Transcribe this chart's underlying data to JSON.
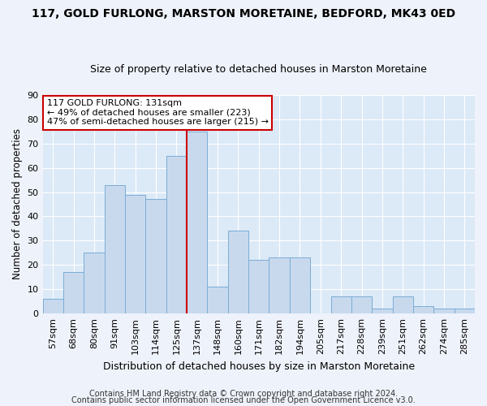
{
  "title1": "117, GOLD FURLONG, MARSTON MORETAINE, BEDFORD, MK43 0ED",
  "title2": "Size of property relative to detached houses in Marston Moretaine",
  "xlabel": "Distribution of detached houses by size in Marston Moretaine",
  "ylabel": "Number of detached properties",
  "footnote1": "Contains HM Land Registry data © Crown copyright and database right 2024.",
  "footnote2": "Contains public sector information licensed under the Open Government Licence v3.0.",
  "categories": [
    "57sqm",
    "68sqm",
    "80sqm",
    "91sqm",
    "103sqm",
    "114sqm",
    "125sqm",
    "137sqm",
    "148sqm",
    "160sqm",
    "171sqm",
    "182sqm",
    "194sqm",
    "205sqm",
    "217sqm",
    "228sqm",
    "239sqm",
    "251sqm",
    "262sqm",
    "274sqm",
    "285sqm"
  ],
  "values": [
    6,
    17,
    25,
    53,
    49,
    47,
    65,
    75,
    11,
    34,
    22,
    23,
    23,
    0,
    7,
    7,
    2,
    7,
    3,
    2,
    2
  ],
  "bar_color": "#c8d9ee",
  "bar_edge_color": "#7aadd4",
  "annotation_line1": "117 GOLD FURLONG: 131sqm",
  "annotation_line2": "← 49% of detached houses are smaller (223)",
  "annotation_line3": "47% of semi-detached houses are larger (215) →",
  "annotation_box_facecolor": "#ffffff",
  "annotation_box_edgecolor": "#cc0000",
  "highlight_line_xindex": 6.5,
  "ylim": [
    0,
    90
  ],
  "yticks": [
    0,
    10,
    20,
    30,
    40,
    50,
    60,
    70,
    80,
    90
  ],
  "fig_facecolor": "#eef2fa",
  "axes_facecolor": "#dce9f7",
  "grid_color": "#ffffff",
  "title1_fontsize": 10,
  "title2_fontsize": 9,
  "xlabel_fontsize": 9,
  "ylabel_fontsize": 8.5,
  "tick_fontsize": 8,
  "annotation_fontsize": 8,
  "footnote_fontsize": 7
}
